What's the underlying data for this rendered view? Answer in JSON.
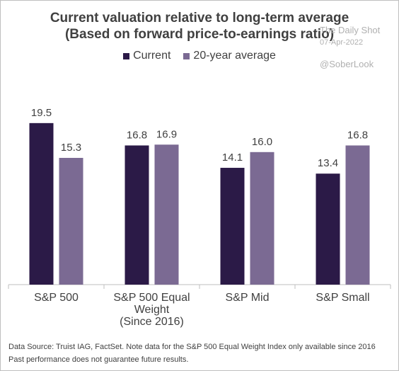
{
  "title_line1": "Current valuation relative to long-term average",
  "title_line2": "(Based on forward price-to-earnings ratio)",
  "watermark": {
    "source": "The Daily Shot",
    "date": "07-Apr-2022",
    "handle": "@SoberLook"
  },
  "footnotes": {
    "source": "Data Source: Truist IAG, FactSet. Note data for the S&P 500 Equal Weight Index only available since 2016",
    "disclaimer": "Past performance does not guarantee future results."
  },
  "colors": {
    "current": "#2b1a47",
    "average": "#7b6a93"
  },
  "chart_data": {
    "type": "bar",
    "categories": [
      [
        "S&P 500"
      ],
      [
        "S&P 500 Equal",
        "Weight",
        "(Since 2016)"
      ],
      [
        "S&P Mid"
      ],
      [
        "S&P Small"
      ]
    ],
    "series": [
      {
        "name": "Current",
        "values": [
          19.5,
          16.8,
          14.1,
          13.4
        ]
      },
      {
        "name": "20-year average",
        "values": [
          15.3,
          16.9,
          16.0,
          16.8
        ]
      }
    ],
    "ylim": [
      0,
      20
    ],
    "legend": "top-center",
    "grid": false
  }
}
